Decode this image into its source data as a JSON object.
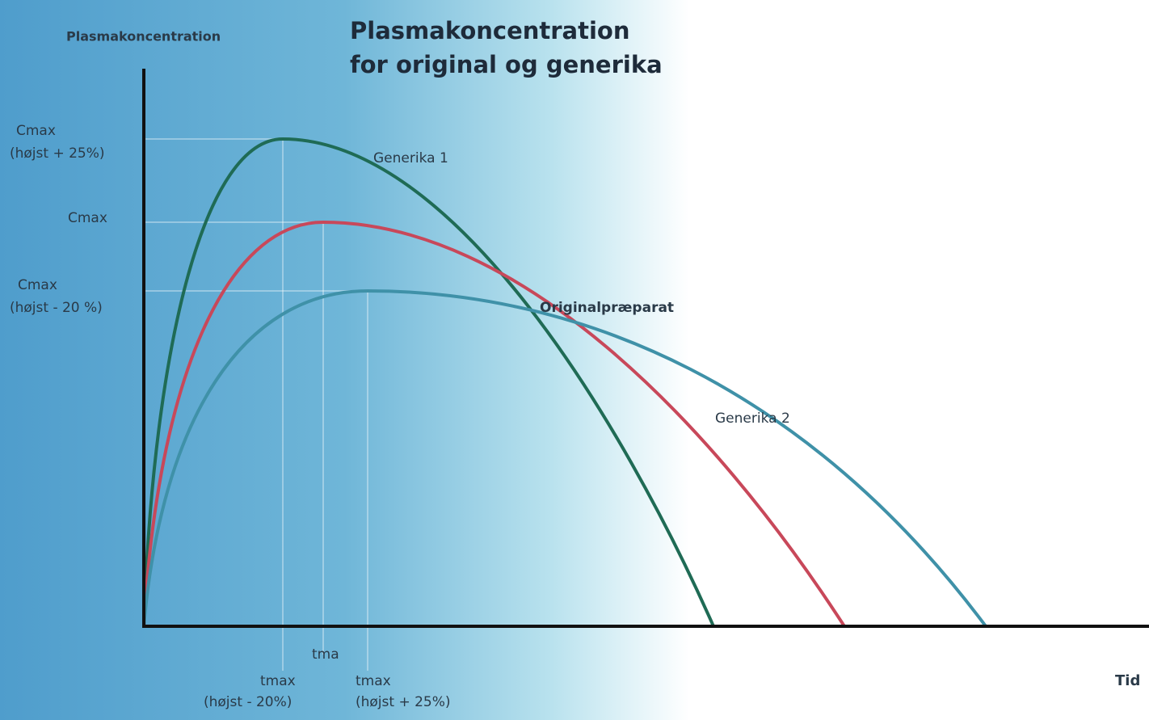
{
  "title": [
    "Plasmakoncentration",
    "for original og generika"
  ],
  "y_axis_label": "Plasmakoncentration",
  "x_axis_label": "Tid",
  "y_labels": [
    [
      "Cmax",
      "(højst + 25%)"
    ],
    [
      "Cmax"
    ],
    [
      "Cmax",
      "(højst - 20 %)"
    ]
  ],
  "x_labels": [
    [
      "tma"
    ],
    [
      "tmax",
      "(højst - 20%)"
    ],
    [
      "tmax",
      "(højst + 25%)"
    ]
  ],
  "curves": [
    {
      "name": "Generika 1",
      "color": "#1f6b55"
    },
    {
      "name": "Originalpræparat",
      "color": "#c8485a"
    },
    {
      "name": "Generika 2",
      "color": "#3f91a8"
    }
  ]
}
